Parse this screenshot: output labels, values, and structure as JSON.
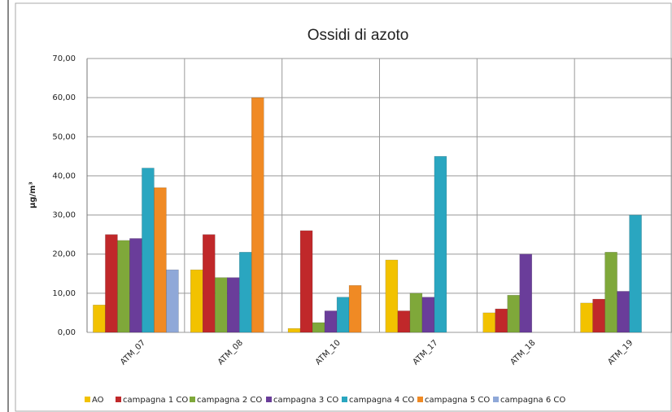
{
  "chart_data": {
    "type": "bar",
    "title": "Ossidi di azoto",
    "y_label": "µg/m³",
    "categories": [
      "ATM_07",
      "ATM_08",
      "ATM_10",
      "ATM_17",
      "ATM_18",
      "ATM_19"
    ],
    "series": [
      {
        "name": "AO",
        "color": "#f2c200",
        "values": [
          7,
          16,
          1,
          18.5,
          5,
          7.5
        ]
      },
      {
        "name": "campagna 1 CO",
        "color": "#c0282a",
        "values": [
          25,
          25,
          26,
          5.5,
          6,
          8.5
        ]
      },
      {
        "name": "campagna 2 CO",
        "color": "#7fa83a",
        "values": [
          23.5,
          14,
          2.5,
          10,
          9.5,
          20.5
        ]
      },
      {
        "name": "campagna 3 CO",
        "color": "#6a3d9a",
        "values": [
          24,
          14,
          5.5,
          9,
          20,
          10.5
        ]
      },
      {
        "name": "campagna 4 CO",
        "color": "#2aa6c0",
        "values": [
          42,
          20.5,
          9,
          45,
          null,
          30
        ]
      },
      {
        "name": "campagna 5 CO",
        "color": "#f08a24",
        "values": [
          37,
          60,
          12,
          null,
          null,
          null
        ]
      },
      {
        "name": "campagna 6 CO",
        "color": "#8fa8d8",
        "values": [
          16,
          null,
          null,
          null,
          null,
          null
        ]
      }
    ],
    "ylim": [
      0,
      70
    ],
    "yticks": [
      {
        "value": 0,
        "label": "0,00"
      },
      {
        "value": 10,
        "label": "10,00"
      },
      {
        "value": 20,
        "label": "20,00"
      },
      {
        "value": 30,
        "label": "30,00"
      },
      {
        "value": 40,
        "label": "40,00"
      },
      {
        "value": 50,
        "label": "50,00"
      },
      {
        "value": 60,
        "label": "60,00"
      },
      {
        "value": 70,
        "label": "70,00"
      }
    ],
    "grid": true
  }
}
